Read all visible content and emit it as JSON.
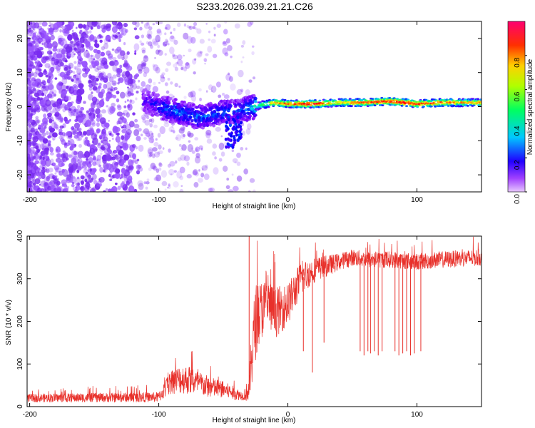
{
  "figure_title": "S233.2026.039.21.21.C26",
  "colors": {
    "line": "#e8302a",
    "axis": "#000000"
  },
  "chart_data": [
    {
      "type": "heatmap",
      "title": "",
      "xlabel": "Height of straight line (km)",
      "ylabel": "Frequency (Hz)",
      "xlim": [
        -202,
        150
      ],
      "ylim": [
        -25,
        25
      ],
      "xticks": [
        -200,
        -100,
        0,
        100
      ],
      "xtick_labels": [
        "-200",
        "-100",
        "0",
        "100"
      ],
      "yticks": [
        -20,
        -10,
        0,
        10,
        20
      ],
      "ytick_labels": [
        "-20",
        "-10",
        "0",
        "10",
        "20"
      ],
      "colorbar": {
        "label": "Normalized spectral amplitude",
        "range": [
          0,
          1
        ],
        "ticks": [
          0.0,
          0.2,
          0.4,
          0.6,
          0.8
        ],
        "tick_labels": [
          "0.0",
          "0.2",
          "0.4",
          "0.6",
          "0.8"
        ],
        "colormap": [
          "#c8a0ff",
          "#8000ff",
          "#0000ff",
          "#00d0ff",
          "#00ff60",
          "#ffff00",
          "#ff8000",
          "#ff0000",
          "#ff0080"
        ]
      },
      "ridge_x": [
        -110,
        -100,
        -90,
        -80,
        -70,
        -60,
        -50,
        -40,
        -30,
        -20,
        -10,
        0,
        10,
        20,
        40,
        60,
        80,
        100,
        120,
        150
      ],
      "ridge_y": [
        1.5,
        0,
        -1,
        -2,
        -3,
        -2.5,
        -1.5,
        -1.5,
        -0.5,
        0.5,
        1.2,
        0.8,
        0.8,
        0.8,
        1.2,
        1.2,
        1.6,
        0.8,
        1.2,
        1.2
      ],
      "ridge_strength": [
        0.15,
        0.25,
        0.3,
        0.3,
        0.3,
        0.3,
        0.3,
        0.25,
        0.35,
        0.55,
        0.75,
        0.85,
        0.9,
        0.95,
        0.7,
        0.85,
        0.95,
        0.9,
        0.8,
        0.75
      ],
      "noise_x_range": [
        -202,
        -25
      ],
      "noise_level": 0.2
    },
    {
      "type": "line",
      "title": "",
      "xlabel": "Height of straight line (km)",
      "ylabel": "SNR (10 * v/v)",
      "xlim": [
        -202,
        150
      ],
      "ylim": [
        0,
        400
      ],
      "xticks": [
        -200,
        -100,
        0,
        100
      ],
      "xtick_labels": [
        "-200",
        "-100",
        "0",
        "100"
      ],
      "yticks": [
        0,
        100,
        200,
        300,
        400
      ],
      "ytick_labels": [
        "0",
        "100",
        "200",
        "300",
        "400"
      ],
      "envelope_x": [
        -202,
        -100,
        -90,
        -80,
        -70,
        -60,
        -50,
        -40,
        -35,
        -30,
        -28,
        -25,
        -20,
        -15,
        -10,
        0,
        10,
        20,
        30,
        40,
        50,
        60,
        80,
        100,
        120,
        150
      ],
      "envelope_mean": [
        20,
        22,
        60,
        65,
        55,
        45,
        40,
        30,
        25,
        40,
        120,
        200,
        230,
        240,
        220,
        240,
        300,
        320,
        330,
        340,
        350,
        345,
        345,
        340,
        345,
        350
      ],
      "envelope_spread": [
        10,
        12,
        30,
        35,
        30,
        25,
        20,
        15,
        10,
        30,
        80,
        90,
        70,
        60,
        60,
        50,
        40,
        30,
        25,
        20,
        20,
        20,
        20,
        20,
        20,
        20
      ],
      "dropouts": [
        {
          "x": -30,
          "y": 400
        },
        {
          "x": 12,
          "y": 130
        },
        {
          "x": 19,
          "y": 80
        },
        {
          "x": 28,
          "y": 150
        },
        {
          "x": 56,
          "y": 130
        },
        {
          "x": 59,
          "y": 120
        },
        {
          "x": 62,
          "y": 130
        },
        {
          "x": 64,
          "y": 125
        },
        {
          "x": 67,
          "y": 130
        },
        {
          "x": 70,
          "y": 120
        },
        {
          "x": 73,
          "y": 130
        },
        {
          "x": 83,
          "y": 130
        },
        {
          "x": 86,
          "y": 120
        },
        {
          "x": 89,
          "y": 125
        },
        {
          "x": 92,
          "y": 130
        },
        {
          "x": 95,
          "y": 120
        },
        {
          "x": 98,
          "y": 125
        },
        {
          "x": 103,
          "y": 130
        }
      ]
    }
  ]
}
